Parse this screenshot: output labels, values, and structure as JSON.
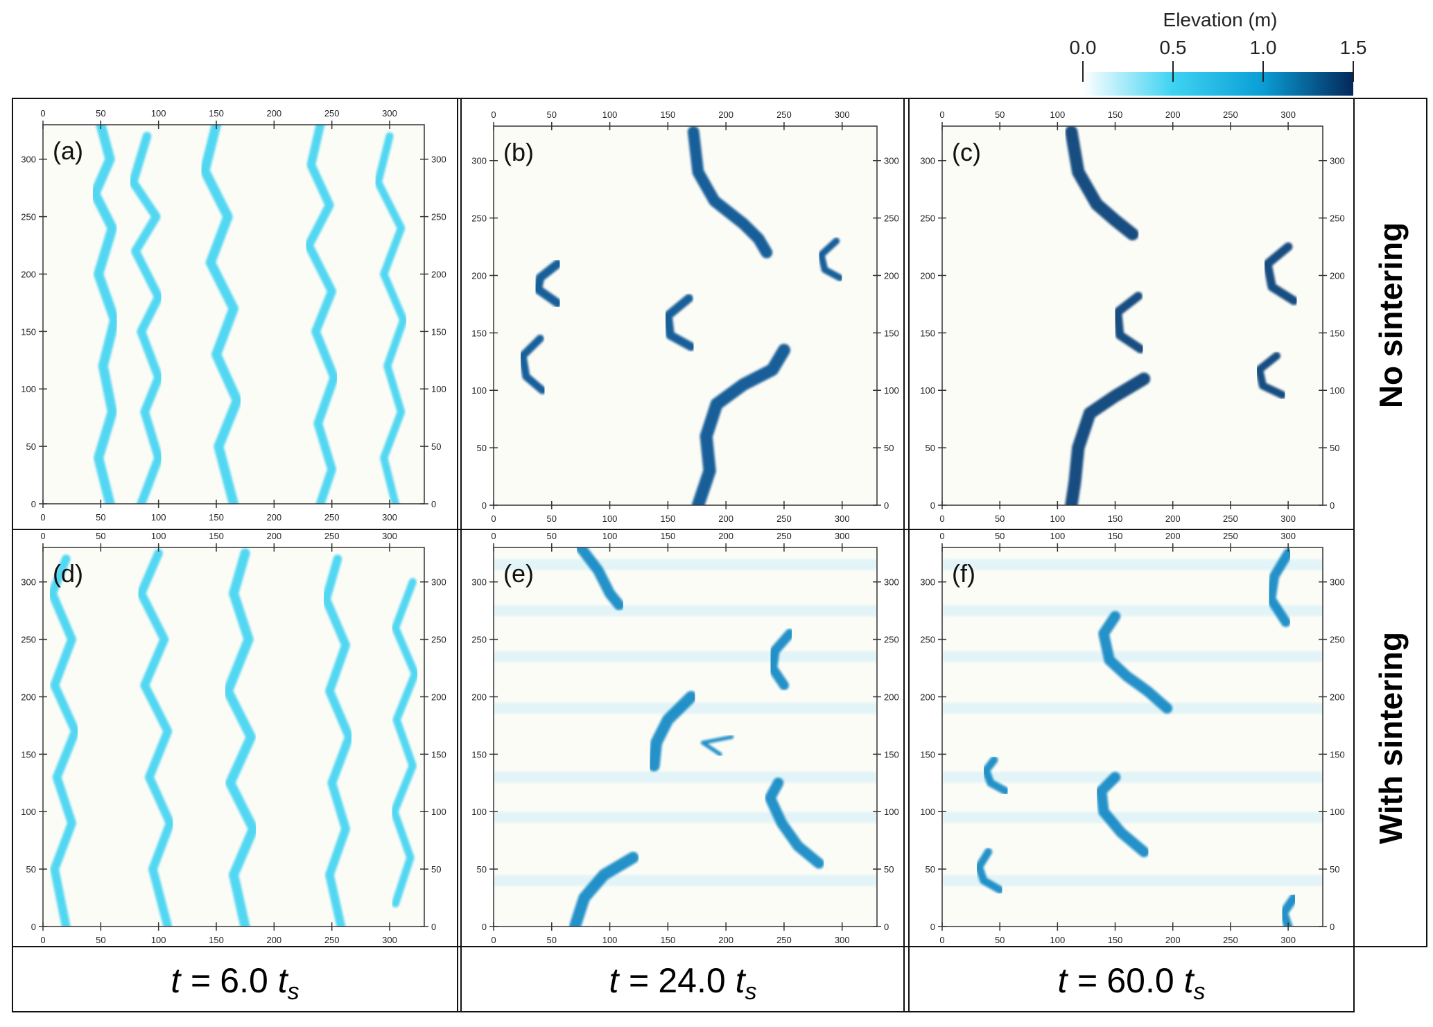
{
  "colorbar": {
    "title": "Elevation (m)",
    "ticks": [
      "0.0",
      "0.5",
      "1.0",
      "1.5"
    ],
    "range": [
      0,
      1.5
    ],
    "colors": [
      "#ffffff",
      "#3fd3f2",
      "#0a9fd6",
      "#04285a"
    ]
  },
  "row_labels": [
    "No sintering",
    "With sintering"
  ],
  "time_labels": [
    {
      "prefix": "t = ",
      "value": "6.0",
      "unit": "t",
      "sub": "s"
    },
    {
      "prefix": "t = ",
      "value": "24.0",
      "unit": "t",
      "sub": "s"
    },
    {
      "prefix": "t = ",
      "value": "60.0",
      "unit": "t",
      "sub": "s"
    }
  ],
  "axis_ticks": [
    "0",
    "50",
    "100",
    "150",
    "200",
    "250",
    "300"
  ],
  "chart_data": [
    {
      "type": "heatmap",
      "label": "(a)",
      "xlim": [
        0,
        330
      ],
      "ylim": [
        0,
        330
      ],
      "colors": {
        "dune": "#3fd3f2"
      },
      "dunes": [
        {
          "pts": [
            [
              50,
              330
            ],
            [
              58,
              300
            ],
            [
              45,
              270
            ],
            [
              60,
              240
            ],
            [
              48,
              200
            ],
            [
              62,
              160
            ],
            [
              52,
              120
            ],
            [
              60,
              80
            ],
            [
              48,
              40
            ],
            [
              58,
              0
            ]
          ],
          "w": 1.0
        },
        {
          "pts": [
            [
              90,
              320
            ],
            [
              78,
              280
            ],
            [
              98,
              250
            ],
            [
              80,
              220
            ],
            [
              100,
              180
            ],
            [
              85,
              150
            ],
            [
              100,
              110
            ],
            [
              88,
              80
            ],
            [
              100,
              40
            ],
            [
              85,
              0
            ]
          ],
          "w": 0.9
        },
        {
          "pts": [
            [
              150,
              330
            ],
            [
              140,
              290
            ],
            [
              160,
              250
            ],
            [
              145,
              210
            ],
            [
              165,
              170
            ],
            [
              150,
              130
            ],
            [
              168,
              90
            ],
            [
              152,
              50
            ],
            [
              165,
              0
            ]
          ],
          "w": 1.0
        },
        {
          "pts": [
            [
              240,
              330
            ],
            [
              232,
              295
            ],
            [
              248,
              260
            ],
            [
              230,
              225
            ],
            [
              250,
              185
            ],
            [
              236,
              150
            ],
            [
              252,
              110
            ],
            [
              238,
              70
            ],
            [
              250,
              30
            ],
            [
              240,
              0
            ]
          ],
          "w": 0.9
        },
        {
          "pts": [
            [
              300,
              320
            ],
            [
              290,
              280
            ],
            [
              310,
              240
            ],
            [
              295,
              200
            ],
            [
              312,
              160
            ],
            [
              298,
              120
            ],
            [
              310,
              80
            ],
            [
              295,
              40
            ],
            [
              305,
              0
            ]
          ],
          "w": 0.8
        }
      ]
    },
    {
      "type": "heatmap",
      "label": "(b)",
      "xlim": [
        0,
        330
      ],
      "ylim": [
        0,
        330
      ],
      "colors": {
        "dune": "#065090"
      },
      "dunes": [
        {
          "pts": [
            [
              172,
              325
            ],
            [
              176,
              290
            ],
            [
              190,
              265
            ],
            [
              215,
              245
            ],
            [
              228,
              232
            ],
            [
              235,
              220
            ]
          ],
          "w": 1.2
        },
        {
          "pts": [
            [
              250,
              135
            ],
            [
              240,
              118
            ],
            [
              215,
              105
            ],
            [
              192,
              88
            ],
            [
              183,
              60
            ],
            [
              186,
              30
            ],
            [
              176,
              0
            ]
          ],
          "w": 1.3
        },
        {
          "pts": [
            [
              55,
              210
            ],
            [
              40,
              198
            ],
            [
              38,
              188
            ],
            [
              55,
              176
            ]
          ],
          "w": 0.9
        },
        {
          "pts": [
            [
              168,
              180
            ],
            [
              150,
              165
            ],
            [
              152,
              148
            ],
            [
              170,
              138
            ]
          ],
          "w": 0.9
        },
        {
          "pts": [
            [
              40,
              145
            ],
            [
              25,
              130
            ],
            [
              28,
              112
            ],
            [
              42,
              100
            ]
          ],
          "w": 0.8
        },
        {
          "pts": [
            [
              295,
              230
            ],
            [
              282,
              218
            ],
            [
              285,
              205
            ],
            [
              298,
              198
            ]
          ],
          "w": 0.7
        }
      ]
    },
    {
      "type": "heatmap",
      "label": "(c)",
      "xlim": [
        0,
        330
      ],
      "ylim": [
        0,
        330
      ],
      "colors": {
        "dune": "#053b74"
      },
      "dunes": [
        {
          "pts": [
            [
              112,
              325
            ],
            [
              118,
              290
            ],
            [
              134,
              262
            ],
            [
              150,
              248
            ],
            [
              165,
              236
            ]
          ],
          "w": 1.3
        },
        {
          "pts": [
            [
              175,
              110
            ],
            [
              150,
              95
            ],
            [
              128,
              80
            ],
            [
              118,
              50
            ],
            [
              115,
              20
            ],
            [
              112,
              0
            ]
          ],
          "w": 1.3
        },
        {
          "pts": [
            [
              300,
              225
            ],
            [
              282,
              210
            ],
            [
              286,
              190
            ],
            [
              305,
              178
            ]
          ],
          "w": 0.9
        },
        {
          "pts": [
            [
              170,
              182
            ],
            [
              152,
              168
            ],
            [
              154,
              148
            ],
            [
              172,
              136
            ]
          ],
          "w": 0.9
        },
        {
          "pts": [
            [
              290,
              130
            ],
            [
              275,
              118
            ],
            [
              278,
              104
            ],
            [
              295,
              96
            ]
          ],
          "w": 0.8
        }
      ]
    },
    {
      "type": "heatmap",
      "label": "(d)",
      "xlim": [
        0,
        330
      ],
      "ylim": [
        0,
        330
      ],
      "colors": {
        "dune": "#3fd3f2"
      },
      "dunes": [
        {
          "pts": [
            [
              20,
              320
            ],
            [
              8,
              290
            ],
            [
              25,
              250
            ],
            [
              10,
              210
            ],
            [
              28,
              170
            ],
            [
              12,
              130
            ],
            [
              25,
              90
            ],
            [
              10,
              50
            ],
            [
              20,
              0
            ]
          ],
          "w": 0.9
        },
        {
          "pts": [
            [
              100,
              325
            ],
            [
              85,
              290
            ],
            [
              105,
              250
            ],
            [
              88,
              210
            ],
            [
              108,
              170
            ],
            [
              92,
              130
            ],
            [
              110,
              90
            ],
            [
              95,
              50
            ],
            [
              108,
              0
            ]
          ],
          "w": 0.9
        },
        {
          "pts": [
            [
              175,
              325
            ],
            [
              165,
              290
            ],
            [
              178,
              250
            ],
            [
              160,
              205
            ],
            [
              180,
              165
            ],
            [
              162,
              125
            ],
            [
              182,
              85
            ],
            [
              165,
              45
            ],
            [
              175,
              0
            ]
          ],
          "w": 1.0
        },
        {
          "pts": [
            [
              255,
              320
            ],
            [
              245,
              285
            ],
            [
              262,
              245
            ],
            [
              248,
              205
            ],
            [
              265,
              165
            ],
            [
              250,
              125
            ],
            [
              262,
              85
            ],
            [
              248,
              45
            ],
            [
              258,
              0
            ]
          ],
          "w": 0.9
        },
        {
          "pts": [
            [
              320,
              300
            ],
            [
              305,
              260
            ],
            [
              322,
              220
            ],
            [
              306,
              180
            ],
            [
              320,
              140
            ],
            [
              304,
              100
            ],
            [
              318,
              60
            ],
            [
              305,
              20
            ]
          ],
          "w": 0.8
        }
      ]
    },
    {
      "type": "heatmap",
      "label": "(e)",
      "xlim": [
        0,
        330
      ],
      "ylim": [
        0,
        330
      ],
      "colors": {
        "dune": "#0b86c4"
      },
      "dunes": [
        {
          "pts": [
            [
              75,
              330
            ],
            [
              90,
              310
            ],
            [
              100,
              290
            ],
            [
              108,
              280
            ]
          ],
          "w": 1.1
        },
        {
          "pts": [
            [
              170,
              200
            ],
            [
              150,
              180
            ],
            [
              140,
              160
            ],
            [
              138,
              140
            ]
          ],
          "w": 1.2
        },
        {
          "pts": [
            [
              255,
              255
            ],
            [
              242,
              240
            ],
            [
              240,
              225
            ],
            [
              250,
              210
            ]
          ],
          "w": 1.0
        },
        {
          "pts": [
            [
              245,
              125
            ],
            [
              238,
              112
            ],
            [
              248,
              90
            ],
            [
              262,
              70
            ],
            [
              280,
              55
            ]
          ],
          "w": 1.1
        },
        {
          "pts": [
            [
              120,
              60
            ],
            [
              95,
              45
            ],
            [
              78,
              25
            ],
            [
              70,
              0
            ]
          ],
          "w": 1.2
        },
        {
          "pts": [
            [
              195,
              150
            ],
            [
              180,
              160
            ],
            [
              205,
              165
            ]
          ],
          "w": 0.4
        }
      ]
    },
    {
      "type": "heatmap",
      "label": "(f)",
      "xlim": [
        0,
        330
      ],
      "ylim": [
        0,
        330
      ],
      "colors": {
        "dune": "#0b86c4"
      },
      "dunes": [
        {
          "pts": [
            [
              300,
              325
            ],
            [
              288,
              305
            ],
            [
              285,
              285
            ],
            [
              298,
              265
            ]
          ],
          "w": 1.0
        },
        {
          "pts": [
            [
              150,
              270
            ],
            [
              140,
              255
            ],
            [
              145,
              232
            ],
            [
              160,
              218
            ],
            [
              178,
              205
            ],
            [
              195,
              190
            ]
          ],
          "w": 1.1
        },
        {
          "pts": [
            [
              150,
              130
            ],
            [
              138,
              118
            ],
            [
              140,
              100
            ],
            [
              155,
              82
            ],
            [
              175,
              65
            ]
          ],
          "w": 1.1
        },
        {
          "pts": [
            [
              45,
              145
            ],
            [
              38,
              136
            ],
            [
              42,
              125
            ],
            [
              55,
              118
            ]
          ],
          "w": 0.8
        },
        {
          "pts": [
            [
              40,
              65
            ],
            [
              32,
              52
            ],
            [
              36,
              40
            ],
            [
              50,
              32
            ]
          ],
          "w": 0.8
        },
        {
          "pts": [
            [
              305,
              25
            ],
            [
              296,
              12
            ],
            [
              300,
              0
            ]
          ],
          "w": 0.9
        }
      ]
    }
  ]
}
